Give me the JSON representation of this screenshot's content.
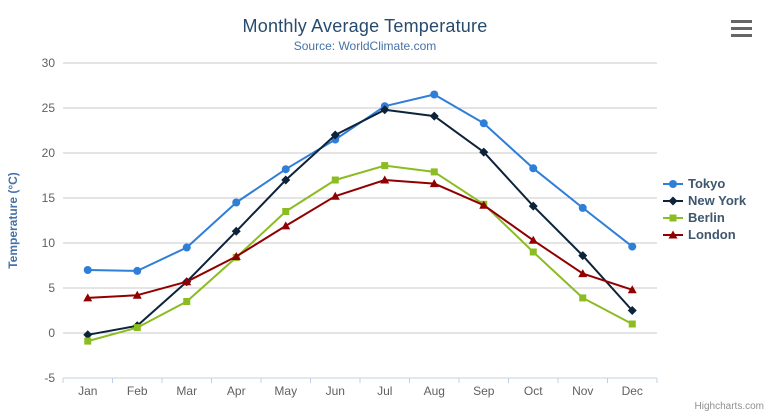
{
  "chart_data": {
    "type": "line",
    "title": "Monthly Average Temperature",
    "subtitle": "Source: WorldClimate.com",
    "xlabel": "",
    "ylabel": "Temperature (°C)",
    "ylim": [
      -5,
      30
    ],
    "ytick_step": 5,
    "grid": true,
    "legend_position": "right",
    "categories": [
      "Jan",
      "Feb",
      "Mar",
      "Apr",
      "May",
      "Jun",
      "Jul",
      "Aug",
      "Sep",
      "Oct",
      "Nov",
      "Dec"
    ],
    "series": [
      {
        "name": "Tokyo",
        "color": "#2f7ed8",
        "marker": "circle",
        "values": [
          7.0,
          6.9,
          9.5,
          14.5,
          18.2,
          21.5,
          25.2,
          26.5,
          23.3,
          18.3,
          13.9,
          9.6
        ]
      },
      {
        "name": "New York",
        "color": "#0d233a",
        "marker": "diamond",
        "values": [
          -0.2,
          0.8,
          5.7,
          11.3,
          17.0,
          22.0,
          24.8,
          24.1,
          20.1,
          14.1,
          8.6,
          2.5
        ]
      },
      {
        "name": "Berlin",
        "color": "#8bbc21",
        "marker": "square",
        "values": [
          -0.9,
          0.6,
          3.5,
          8.4,
          13.5,
          17.0,
          18.6,
          17.9,
          14.3,
          9.0,
          3.9,
          1.0
        ]
      },
      {
        "name": "London",
        "color": "#910000",
        "marker": "triangle",
        "values": [
          3.9,
          4.2,
          5.7,
          8.5,
          11.9,
          15.2,
          17.0,
          16.6,
          14.2,
          10.3,
          6.6,
          4.8
        ]
      }
    ]
  },
  "colors": {
    "title": "#274b6d",
    "subtitle": "#4572a7",
    "axis_title": "#4572a7",
    "tick_label": "#606060",
    "gridline": "#c8c8c8",
    "axis_line": "#c0d0e0",
    "credits": "#909090"
  },
  "credits_label": "Highcharts.com",
  "export_menu": {
    "icon": "hamburger-icon"
  }
}
